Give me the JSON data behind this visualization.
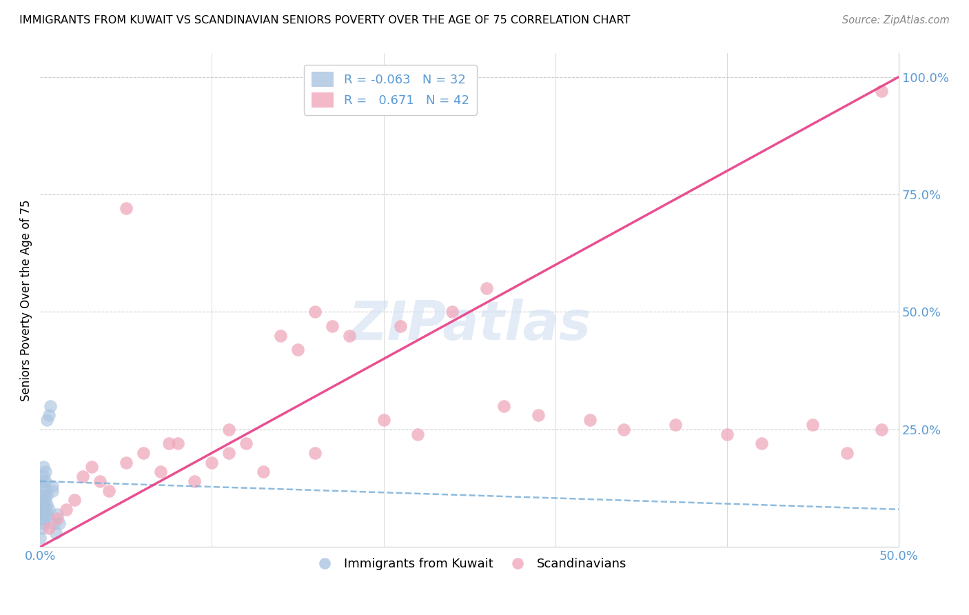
{
  "title": "IMMIGRANTS FROM KUWAIT VS SCANDINAVIAN SENIORS POVERTY OVER THE AGE OF 75 CORRELATION CHART",
  "source": "Source: ZipAtlas.com",
  "ylabel": "Seniors Poverty Over the Age of 75",
  "xlim": [
    0.0,
    0.5
  ],
  "ylim": [
    0.0,
    1.05
  ],
  "watermark": "ZIPatlas",
  "blue_color": "#aac4e0",
  "pink_color": "#f0a8bc",
  "blue_line_color": "#5b9bd5",
  "pink_line_color": "#e8458a",
  "blue_dash_color": "#7bb0d8",
  "background_color": "#ffffff",
  "grid_color": "#cccccc",
  "kuwait_x": [
    0.0,
    0.001,
    0.001,
    0.001,
    0.001,
    0.001,
    0.002,
    0.002,
    0.002,
    0.002,
    0.002,
    0.002,
    0.002,
    0.003,
    0.003,
    0.003,
    0.003,
    0.003,
    0.003,
    0.004,
    0.004,
    0.004,
    0.004,
    0.005,
    0.005,
    0.006,
    0.007,
    0.007,
    0.008,
    0.009,
    0.01,
    0.011
  ],
  "kuwait_y": [
    0.02,
    0.04,
    0.06,
    0.08,
    0.1,
    0.14,
    0.05,
    0.07,
    0.09,
    0.11,
    0.13,
    0.15,
    0.17,
    0.06,
    0.08,
    0.1,
    0.12,
    0.14,
    0.16,
    0.07,
    0.09,
    0.11,
    0.27,
    0.08,
    0.28,
    0.3,
    0.12,
    0.13,
    0.05,
    0.03,
    0.07,
    0.05
  ],
  "scandinavian_x": [
    0.005,
    0.01,
    0.015,
    0.02,
    0.025,
    0.03,
    0.035,
    0.04,
    0.05,
    0.06,
    0.07,
    0.08,
    0.09,
    0.1,
    0.11,
    0.12,
    0.13,
    0.14,
    0.15,
    0.16,
    0.17,
    0.18,
    0.2,
    0.22,
    0.24,
    0.27,
    0.29,
    0.32,
    0.34,
    0.37,
    0.4,
    0.42,
    0.45,
    0.47,
    0.49,
    0.05,
    0.075,
    0.11,
    0.16,
    0.21,
    0.26,
    0.49
  ],
  "scandinavian_y": [
    0.04,
    0.06,
    0.08,
    0.1,
    0.15,
    0.17,
    0.14,
    0.12,
    0.18,
    0.2,
    0.16,
    0.22,
    0.14,
    0.18,
    0.2,
    0.22,
    0.16,
    0.45,
    0.42,
    0.2,
    0.47,
    0.45,
    0.27,
    0.24,
    0.5,
    0.3,
    0.28,
    0.27,
    0.25,
    0.26,
    0.24,
    0.22,
    0.26,
    0.2,
    0.25,
    0.72,
    0.22,
    0.25,
    0.5,
    0.47,
    0.55,
    0.97
  ],
  "kuwait_line_x": [
    0.0,
    0.5
  ],
  "kuwait_line_y": [
    0.14,
    0.08
  ],
  "scand_line_x": [
    0.0,
    0.5
  ],
  "scand_line_y": [
    0.0,
    1.0
  ]
}
